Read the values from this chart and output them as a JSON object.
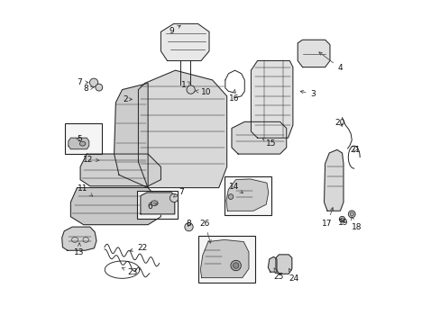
{
  "background_color": "#ffffff",
  "line_color": "#222222",
  "fig_width": 4.89,
  "fig_height": 3.6,
  "dpi": 100
}
